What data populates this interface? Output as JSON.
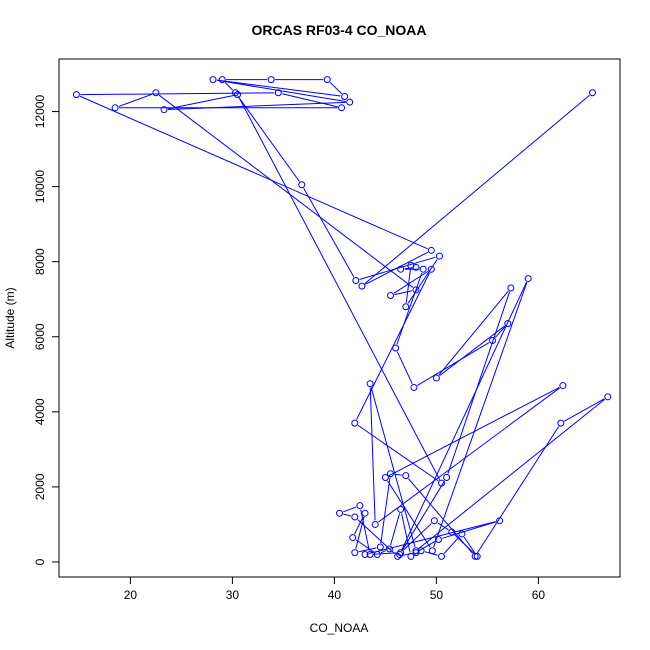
{
  "chart_data": {
    "type": "line",
    "title": "ORCAS RF03-4 CO_NOAA",
    "xlabel": "CO_NOAA",
    "ylabel": "Altitude (m)",
    "xlim": [
      13,
      68
    ],
    "ylim": [
      -400,
      13400
    ],
    "xticks": [
      20,
      30,
      40,
      50,
      60
    ],
    "yticks": [
      0,
      2000,
      4000,
      6000,
      8000,
      10000,
      12000
    ],
    "grid": false,
    "legend": "none",
    "colors": {
      "series": "#0000ff",
      "axes": "#000000"
    },
    "series": [
      {
        "x": [
          65.3,
          42.7,
          49.5,
          14.7,
          34.5,
          40.7,
          18.5,
          22.5,
          48.0,
          45.5,
          49.5,
          42.0,
          50.5,
          30.5,
          23.3,
          41.5,
          28.1,
          41.0,
          39.3,
          33.8,
          29.0,
          30.3,
          36.8,
          42.1,
          50.3,
          47.0,
          47.5,
          48.0,
          46.5,
          48.7,
          46.0,
          47.8,
          55.5,
          57.0,
          50.0,
          57.3,
          51.0,
          46.4,
          59.0,
          49.6,
          45.0,
          62.4,
          44.0,
          43.5,
          48.0,
          66.8,
          62.2,
          53.8,
          47.0,
          45.5,
          44.5,
          42.0,
          43.0,
          41.8,
          44.2,
          45.4,
          46.5,
          47.5,
          48.5,
          50.5,
          52.5,
          54.0,
          51.5,
          49.8,
          46.5,
          43.5,
          42.5,
          40.5,
          42.0,
          46.2,
          48.0,
          50.2,
          56.2,
          43.0
        ],
        "y": [
          12500,
          7350,
          8300,
          12450,
          12500,
          12100,
          12100,
          12500,
          7250,
          7100,
          7800,
          3700,
          2100,
          12450,
          12050,
          12250,
          12850,
          12400,
          12850,
          12850,
          12850,
          12500,
          10050,
          7500,
          8150,
          6800,
          7900,
          7850,
          7800,
          7800,
          5700,
          4650,
          5900,
          6350,
          4900,
          7300,
          2250,
          200,
          7550,
          300,
          2250,
          4700,
          1000,
          4750,
          300,
          4400,
          3700,
          150,
          2300,
          2350,
          400,
          250,
          1300,
          650,
          200,
          350,
          1400,
          150,
          300,
          150,
          750,
          150,
          800,
          1100,
          250,
          200,
          1500,
          1300,
          1200,
          150,
          250,
          600,
          1100,
          200
        ]
      }
    ]
  }
}
